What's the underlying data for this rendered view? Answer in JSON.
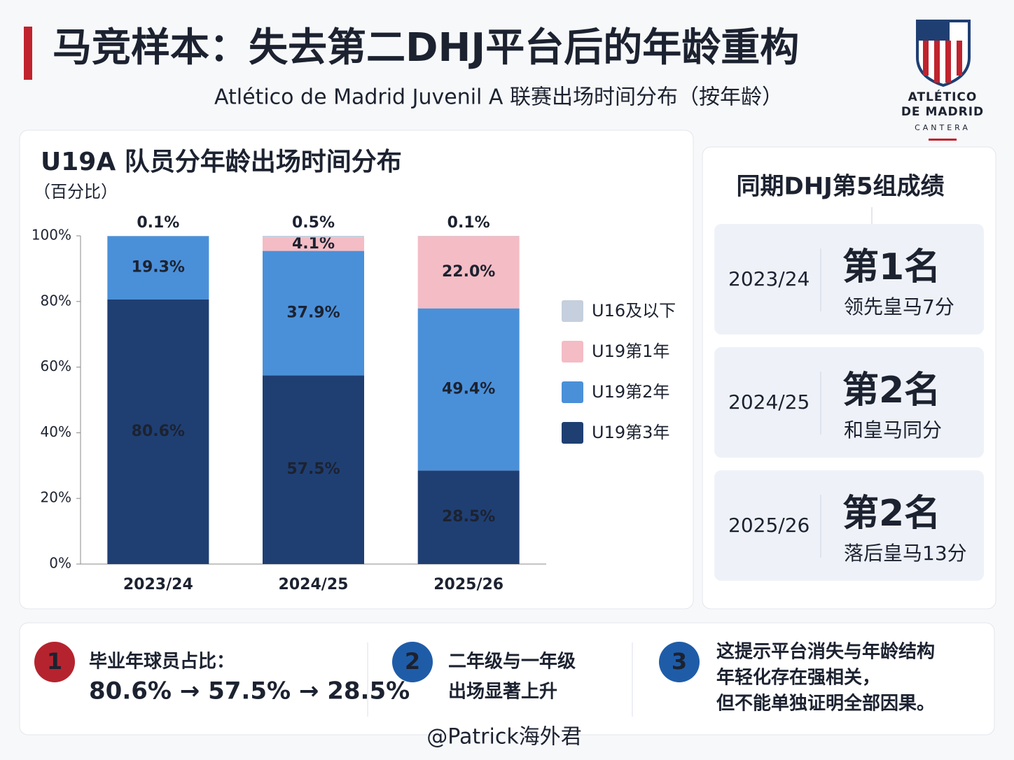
{
  "header": {
    "title": "马竞样本：失去第二DHJ平台后的年龄重构",
    "subtitle": "Atlético de Madrid Juvenil A 联赛出场时间分布（按年龄）"
  },
  "logo": {
    "line1": "ATLÉTICO",
    "line2": "DE MADRID",
    "line3": "CANTERA"
  },
  "chart_data": {
    "type": "stacked_bar",
    "title": "U19A 队员分年龄出场时间分布",
    "subtitle": "（百分比）",
    "categories": [
      "2023/24",
      "2024/25",
      "2025/26"
    ],
    "series": [
      {
        "name": "U16及以下",
        "color": "#c5cfdd",
        "values": [
          0.1,
          0.5,
          0.1
        ],
        "value_labels": [
          "0.1%",
          "0.5%",
          "0.1%"
        ]
      },
      {
        "name": "U19第1年",
        "color": "#f4bcc4",
        "values": [
          0,
          4.1,
          22.0
        ],
        "value_labels": [
          null,
          "4.1%",
          "22.0%"
        ]
      },
      {
        "name": "U19第2年",
        "color": "#4a90d9",
        "values": [
          19.3,
          37.9,
          49.4
        ],
        "value_labels": [
          "19.3%",
          "37.9%",
          "49.4%"
        ]
      },
      {
        "name": "U19第3年",
        "color": "#1f3f73",
        "values": [
          80.6,
          57.5,
          28.5
        ],
        "value_labels": [
          "80.6%",
          "57.5%",
          "28.5%"
        ]
      }
    ],
    "ylim": [
      0,
      100
    ],
    "yticks": [
      {
        "value": 0,
        "label": "0%"
      },
      {
        "value": 20,
        "label": "20%"
      },
      {
        "value": 40,
        "label": "40%"
      },
      {
        "value": 60,
        "label": "60%"
      },
      {
        "value": 80,
        "label": "80%"
      },
      {
        "value": 100,
        "label": "100%"
      }
    ],
    "legend": "right"
  },
  "standings": {
    "title": "同期DHJ第5组成绩",
    "rows": [
      {
        "season": "2023/24",
        "rank": "第1名",
        "note": "领先皇马7分"
      },
      {
        "season": "2024/25",
        "rank": "第2名",
        "note": "和皇马同分"
      },
      {
        "season": "2025/26",
        "rank": "第2名",
        "note": "落后皇马13分"
      }
    ]
  },
  "notes": [
    {
      "number": 1,
      "lines": [
        "毕业年球员占比：",
        "80.6% → 57.5% → 28.5%"
      ]
    },
    {
      "number": 2,
      "lines": [
        "二年级与一年级",
        "出场显著上升"
      ]
    },
    {
      "number": 3,
      "lines": [
        "这提示平台消失与年龄结构",
        "年轻化存在强相关，",
        "但不能单独证明全部因果。"
      ]
    }
  ],
  "watermark": "@Patrick海外君"
}
